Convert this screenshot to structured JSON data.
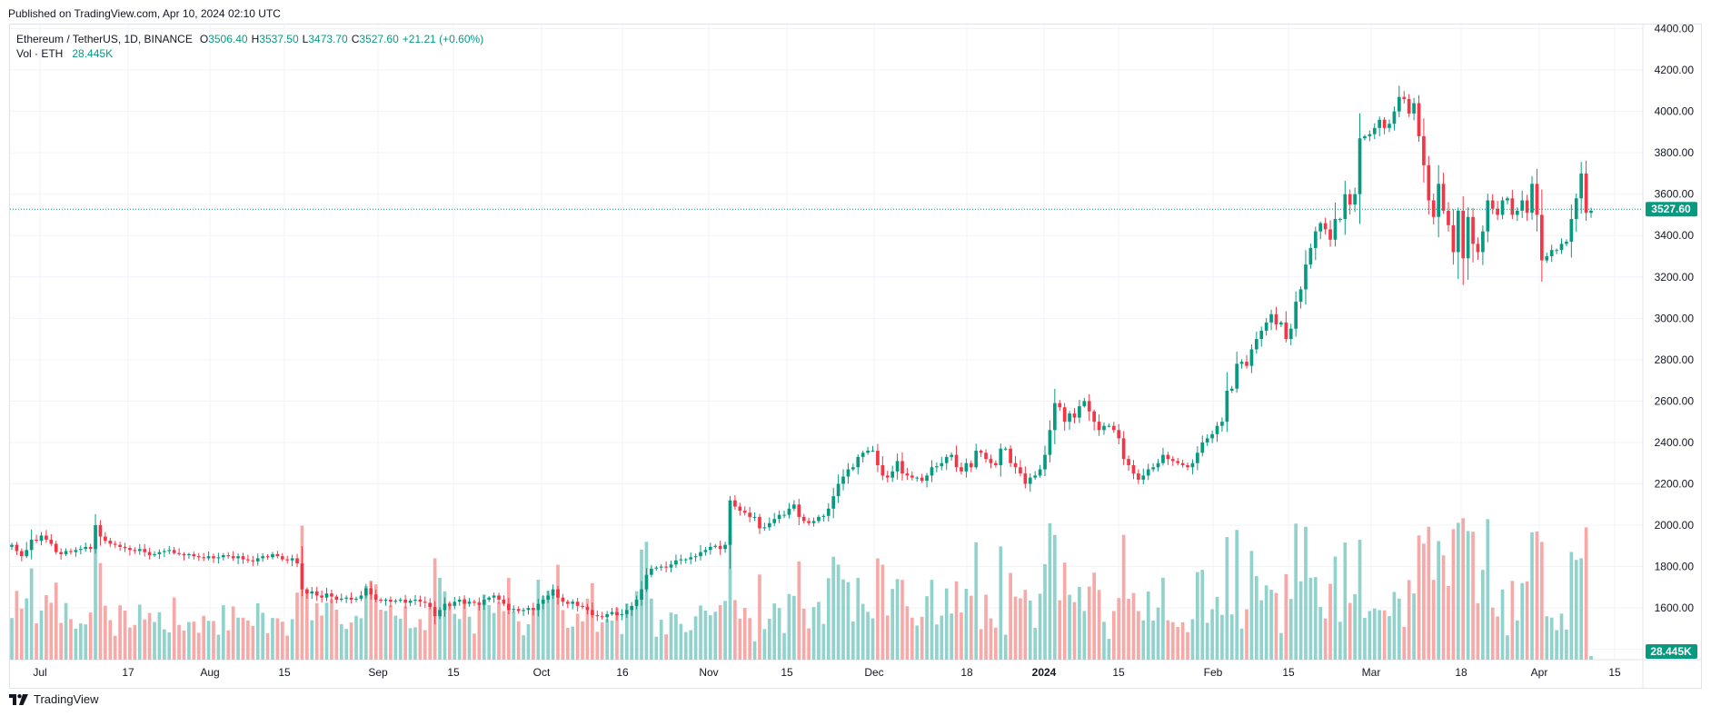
{
  "published": "Published on TradingView.com, Apr 10, 2024 02:10 UTC",
  "legend": {
    "symbol": "Ethereum / TetherUS, 1D, BINANCE",
    "o_label": "O",
    "o_value": "3506.40",
    "h_label": "H",
    "h_value": "3537.50",
    "l_label": "L",
    "l_value": "3473.70",
    "c_label": "C",
    "c_value": "3527.60",
    "change": "+21.21 (+0.60%)",
    "vol_label": "Vol · ETH",
    "vol_value": "28.445K"
  },
  "brand": "TradingView",
  "colors": {
    "up": "#089981",
    "down": "#f23645",
    "vol_up": "#92d2cc",
    "vol_down": "#f7a9a7",
    "grid": "#f0f3fa",
    "last": "#089981"
  },
  "chart_data": {
    "type": "candlestick",
    "ylim": [
      1350,
      4420
    ],
    "y_ticks": [
      "1400.00",
      "1600.00",
      "1800.00",
      "2000.00",
      "2200.00",
      "2400.00",
      "2600.00",
      "2800.00",
      "3000.00",
      "3200.00",
      "3400.00",
      "3600.00",
      "3800.00",
      "4000.00",
      "4200.00",
      "4400.00"
    ],
    "x_ticks": [
      "Jul",
      "17",
      "Aug",
      "15",
      "Sep",
      "15",
      "Oct",
      "16",
      "Nov",
      "15",
      "Dec",
      "18",
      "2024",
      "15",
      "Feb",
      "15",
      "Mar",
      "18",
      "Apr",
      "15"
    ],
    "last_price": "3527.60",
    "last_volume": "28.445K",
    "closes": [
      1905,
      1875,
      1850,
      1880,
      1930,
      1925,
      1950,
      1930,
      1910,
      1870,
      1860,
      1875,
      1870,
      1880,
      1885,
      1895,
      1885,
      2000,
      1945,
      1925,
      1910,
      1905,
      1895,
      1890,
      1880,
      1875,
      1885,
      1870,
      1855,
      1860,
      1870,
      1875,
      1880,
      1865,
      1860,
      1855,
      1860,
      1850,
      1845,
      1840,
      1850,
      1840,
      1845,
      1855,
      1850,
      1840,
      1850,
      1835,
      1830,
      1825,
      1840,
      1850,
      1845,
      1860,
      1850,
      1835,
      1830,
      1840,
      1815,
      1690,
      1670,
      1680,
      1660,
      1650,
      1670,
      1655,
      1640,
      1645,
      1650,
      1640,
      1645,
      1660,
      1695,
      1665,
      1640,
      1635,
      1640,
      1630,
      1635,
      1640,
      1625,
      1635,
      1640,
      1630,
      1625,
      1605,
      1560,
      1590,
      1620,
      1610,
      1630,
      1640,
      1620,
      1630,
      1625,
      1615,
      1640,
      1650,
      1660,
      1640,
      1620,
      1590,
      1595,
      1585,
      1590,
      1600,
      1590,
      1620,
      1640,
      1660,
      1690,
      1650,
      1630,
      1620,
      1630,
      1610,
      1605,
      1590,
      1565,
      1560,
      1555,
      1570,
      1580,
      1565,
      1570,
      1590,
      1610,
      1640,
      1690,
      1760,
      1790,
      1795,
      1800,
      1795,
      1810,
      1830,
      1835,
      1835,
      1845,
      1850,
      1870,
      1880,
      1895,
      1900,
      1885,
      1905,
      2120,
      2090,
      2070,
      2060,
      2040,
      2040,
      1985,
      1990,
      2010,
      2030,
      2050,
      2050,
      2080,
      2100,
      2040,
      2020,
      2010,
      2020,
      2040,
      2045,
      2080,
      2140,
      2200,
      2235,
      2270,
      2280,
      2330,
      2350,
      2360,
      2360,
      2290,
      2240,
      2230,
      2260,
      2310,
      2250,
      2240,
      2230,
      2230,
      2215,
      2240,
      2280,
      2285,
      2300,
      2330,
      2340,
      2280,
      2260,
      2300,
      2280,
      2360,
      2350,
      2320,
      2300,
      2290,
      2370,
      2370,
      2300,
      2280,
      2250,
      2200,
      2230,
      2240,
      2270,
      2340,
      2460,
      2590,
      2570,
      2500,
      2540,
      2520,
      2575,
      2600,
      2550,
      2500,
      2460,
      2480,
      2480,
      2460,
      2420,
      2320,
      2290,
      2250,
      2220,
      2240,
      2270,
      2280,
      2300,
      2340,
      2320,
      2310,
      2300,
      2290,
      2280,
      2300,
      2350,
      2400,
      2420,
      2440,
      2480,
      2500,
      2650,
      2660,
      2780,
      2790,
      2770,
      2850,
      2900,
      2940,
      2980,
      3020,
      2970,
      2980,
      2900,
      2950,
      3080,
      3140,
      3260,
      3340,
      3420,
      3460,
      3430,
      3380,
      3480,
      3480,
      3600,
      3550,
      3600,
      3870,
      3880,
      3890,
      3920,
      3960,
      3920,
      3940,
      4000,
      4070,
      4060,
      3990,
      4040,
      3880,
      3740,
      3570,
      3490,
      3650,
      3520,
      3450,
      3320,
      3520,
      3290,
      3490,
      3360,
      3320,
      3420,
      3570,
      3530,
      3500,
      3570,
      3580,
      3500,
      3520,
      3570,
      3510,
      3650,
      3500,
      3280,
      3300,
      3330,
      3330,
      3360,
      3370,
      3480,
      3580,
      3700,
      3510,
      3520
    ]
  }
}
